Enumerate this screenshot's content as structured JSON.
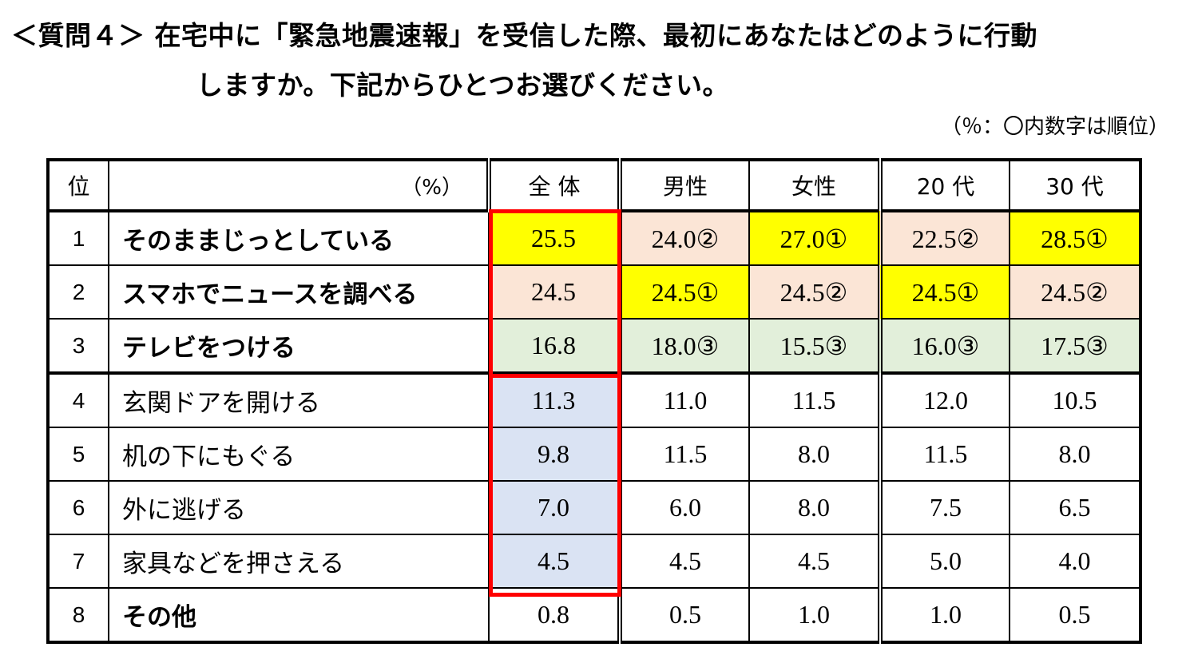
{
  "question": {
    "line1": "＜質問４＞ 在宅中に「緊急地震速報」を受信した際、最初にあなたはどのように行動",
    "line2": "しますか。下記からひとつお選びください。"
  },
  "note": "（％：〇内数字は順位）",
  "table": {
    "headers": {
      "rank": "位",
      "unit": "（%）",
      "total": "全 体",
      "male": "男性",
      "female": "女性",
      "age20": "20 代",
      "age30": "30 代"
    },
    "rows": [
      {
        "rank": "1",
        "item": "そのままじっとしている",
        "total": "25.5",
        "male": "24.0②",
        "female": "27.0①",
        "age20": "22.5②",
        "age30": "28.5①"
      },
      {
        "rank": "2",
        "item": "スマホでニュースを調べる",
        "total": "24.5",
        "male": "24.5①",
        "female": "24.5②",
        "age20": "24.5①",
        "age30": "24.5②"
      },
      {
        "rank": "3",
        "item": "テレビをつける",
        "total": "16.8",
        "male": "18.0③",
        "female": "15.5③",
        "age20": "16.0③",
        "age30": "17.5③"
      },
      {
        "rank": "4",
        "item": "玄関ドアを開ける",
        "total": "11.3",
        "male": "11.0",
        "female": "11.5",
        "age20": "12.0",
        "age30": "10.5"
      },
      {
        "rank": "5",
        "item": "机の下にもぐる",
        "total": "9.8",
        "male": "11.5",
        "female": "8.0",
        "age20": "11.5",
        "age30": "8.0"
      },
      {
        "rank": "6",
        "item": "外に逃げる",
        "total": "7.0",
        "male": "6.0",
        "female": "8.0",
        "age20": "7.5",
        "age30": "6.5"
      },
      {
        "rank": "7",
        "item": "家具などを押さえる",
        "total": "4.5",
        "male": "4.5",
        "female": "4.5",
        "age20": "5.0",
        "age30": "4.0"
      },
      {
        "rank": "8",
        "item": "その他",
        "total": "0.8",
        "male": "0.5",
        "female": "1.0",
        "age20": "1.0",
        "age30": "0.5"
      }
    ]
  },
  "colors": {
    "first": "#ffff00",
    "second": "#fbe5d6",
    "third": "#e2efda",
    "total_lower": "#dae3f3",
    "highlight_border": "#ff0000"
  }
}
